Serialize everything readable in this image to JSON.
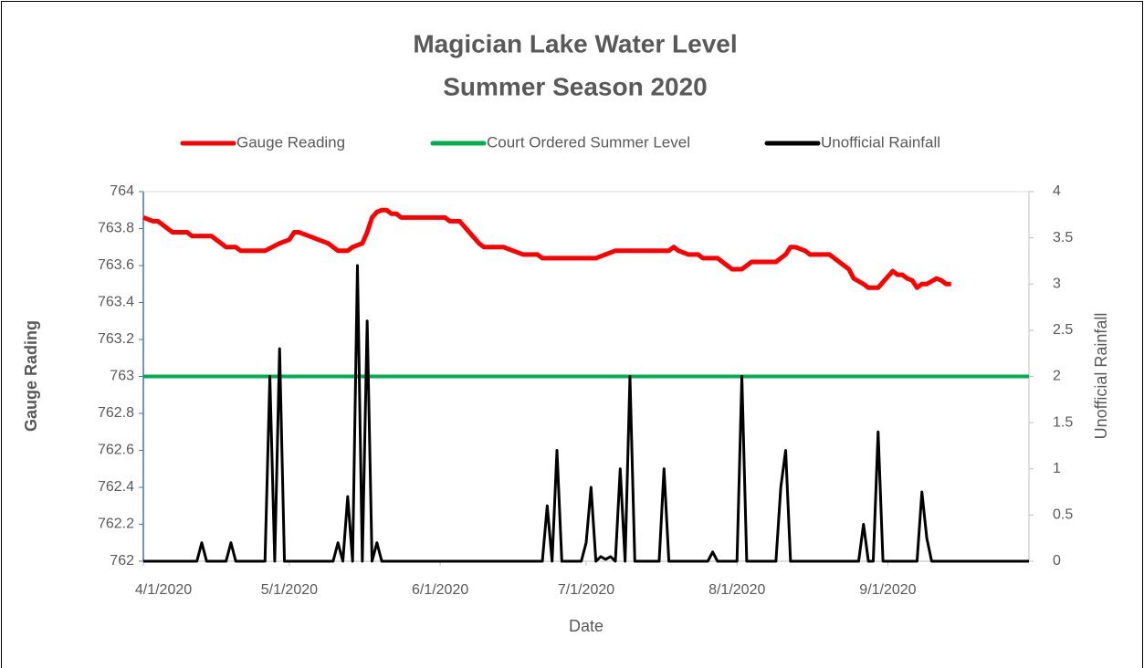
{
  "chart_data": {
    "type": "line",
    "title": "Magician Lake Water Level",
    "subtitle": "Summer Season 2020",
    "xlabel": "Date",
    "ylabel": "Gauge Rading",
    "y2label": "Unofficial Rainfall",
    "legend": "top",
    "xlim": [
      "4/1/2020",
      "9/30/2020"
    ],
    "xticks": [
      "4/1/2020",
      "5/1/2020",
      "6/1/2020",
      "7/1/2020",
      "8/1/2020",
      "9/1/2020"
    ],
    "ylim": [
      762,
      764
    ],
    "yticks": [
      762,
      762.2,
      762.4,
      762.6,
      762.8,
      763,
      763.2,
      763.4,
      763.6,
      763.8,
      764
    ],
    "y2lim": [
      0,
      4
    ],
    "y2ticks": [
      0,
      0.5,
      1,
      1.5,
      2,
      2.5,
      3,
      3.5,
      4
    ],
    "series": [
      {
        "name": "Gauge Reading",
        "color": "#ff0000",
        "x": [
          "4/1/2020",
          "4/3/2020",
          "4/4/2020",
          "4/7/2020",
          "4/10/2020",
          "4/11/2020",
          "4/15/2020",
          "4/17/2020",
          "4/18/2020",
          "4/20/2020",
          "4/21/2020",
          "4/26/2020",
          "4/29/2020",
          "5/1/2020",
          "5/2/2020",
          "5/3/2020",
          "5/5/2020",
          "5/7/2020",
          "5/9/2020",
          "5/11/2020",
          "5/13/2020",
          "5/14/2020",
          "5/16/2020",
          "5/17/2020",
          "5/18/2020",
          "5/19/2020",
          "5/20/2020",
          "5/21/2020",
          "5/22/2020",
          "5/23/2020",
          "5/24/2020",
          "6/2/2020",
          "6/3/2020",
          "6/5/2020",
          "6/7/2020",
          "6/9/2020",
          "6/10/2020",
          "6/14/2020",
          "6/16/2020",
          "6/18/2020",
          "6/21/2020",
          "6/22/2020",
          "7/3/2020",
          "7/5/2020",
          "7/7/2020",
          "7/18/2020",
          "7/19/2020",
          "7/20/2020",
          "7/22/2020",
          "7/24/2020",
          "7/25/2020",
          "7/28/2020",
          "7/30/2020",
          "7/31/2020",
          "8/2/2020",
          "8/4/2020",
          "8/9/2020",
          "8/11/2020",
          "8/12/2020",
          "8/13/2020",
          "8/15/2020",
          "8/16/2020",
          "8/20/2020",
          "8/22/2020",
          "8/24/2020",
          "8/25/2020",
          "8/27/2020",
          "8/28/2020",
          "8/30/2020",
          "9/1/2020",
          "9/2/2020",
          "9/3/2020",
          "9/4/2020",
          "9/5/2020",
          "9/6/2020",
          "9/7/2020",
          "9/8/2020",
          "9/9/2020",
          "9/11/2020",
          "9/12/2020",
          "9/13/2020",
          "9/14/2020"
        ],
        "values": [
          763.86,
          763.84,
          763.84,
          763.78,
          763.78,
          763.76,
          763.76,
          763.72,
          763.7,
          763.7,
          763.68,
          763.68,
          763.72,
          763.74,
          763.78,
          763.78,
          763.76,
          763.74,
          763.72,
          763.68,
          763.68,
          763.7,
          763.72,
          763.78,
          763.86,
          763.89,
          763.9,
          763.9,
          763.88,
          763.88,
          763.86,
          763.86,
          763.84,
          763.84,
          763.78,
          763.72,
          763.7,
          763.7,
          763.68,
          763.66,
          763.66,
          763.64,
          763.64,
          763.66,
          763.68,
          763.68,
          763.7,
          763.68,
          763.66,
          763.66,
          763.64,
          763.64,
          763.6,
          763.58,
          763.58,
          763.62,
          763.62,
          763.66,
          763.7,
          763.7,
          763.68,
          763.66,
          763.66,
          763.62,
          763.58,
          763.53,
          763.5,
          763.48,
          763.48,
          763.54,
          763.57,
          763.55,
          763.55,
          763.53,
          763.52,
          763.48,
          763.5,
          763.5,
          763.53,
          763.52,
          763.5,
          763.5
        ]
      },
      {
        "name": "Court Ordered Summer Level",
        "color": "#00b050",
        "x": [
          "4/1/2020",
          "9/30/2020"
        ],
        "values": [
          763,
          763
        ]
      },
      {
        "name": "Unofficial Rainfall",
        "color": "#000000",
        "axis": "y2",
        "x": [
          "4/1/2020",
          "4/12/2020",
          "4/13/2020",
          "4/14/2020",
          "4/18/2020",
          "4/19/2020",
          "4/20/2020",
          "4/26/2020",
          "4/27/2020",
          "4/28/2020",
          "4/29/2020",
          "4/30/2020",
          "5/10/2020",
          "5/11/2020",
          "5/12/2020",
          "5/13/2020",
          "5/14/2020",
          "5/15/2020",
          "5/16/2020",
          "5/17/2020",
          "5/18/2020",
          "5/19/2020",
          "5/20/2020",
          "6/22/2020",
          "6/23/2020",
          "6/24/2020",
          "6/25/2020",
          "6/26/2020",
          "6/30/2020",
          "7/1/2020",
          "7/2/2020",
          "7/3/2020",
          "7/4/2020",
          "7/5/2020",
          "7/6/2020",
          "7/7/2020",
          "7/8/2020",
          "7/9/2020",
          "7/10/2020",
          "7/11/2020",
          "7/16/2020",
          "7/17/2020",
          "7/18/2020",
          "7/26/2020",
          "7/27/2020",
          "7/28/2020",
          "8/1/2020",
          "8/2/2020",
          "8/3/2020",
          "8/9/2020",
          "8/10/2020",
          "8/11/2020",
          "8/12/2020",
          "8/26/2020",
          "8/27/2020",
          "8/28/2020",
          "8/29/2020",
          "8/30/2020",
          "8/31/2020",
          "9/7/2020",
          "9/8/2020",
          "9/9/2020",
          "9/10/2020",
          "9/30/2020"
        ],
        "values": [
          0,
          0,
          0.2,
          0,
          0,
          0.2,
          0,
          0,
          2,
          0,
          2.3,
          0,
          0,
          0.2,
          0,
          0.7,
          0,
          3.2,
          0,
          2.6,
          0,
          0.2,
          0,
          0,
          0.6,
          0,
          1.2,
          0,
          0,
          0.2,
          0.8,
          0,
          0.05,
          0.02,
          0.05,
          0,
          1,
          0,
          2,
          0,
          0,
          1,
          0,
          0,
          0.1,
          0,
          0,
          2,
          0,
          0,
          0.8,
          1.2,
          0,
          0,
          0.4,
          0,
          0,
          1.4,
          0,
          0,
          0.75,
          0.25,
          0,
          0
        ]
      }
    ]
  }
}
